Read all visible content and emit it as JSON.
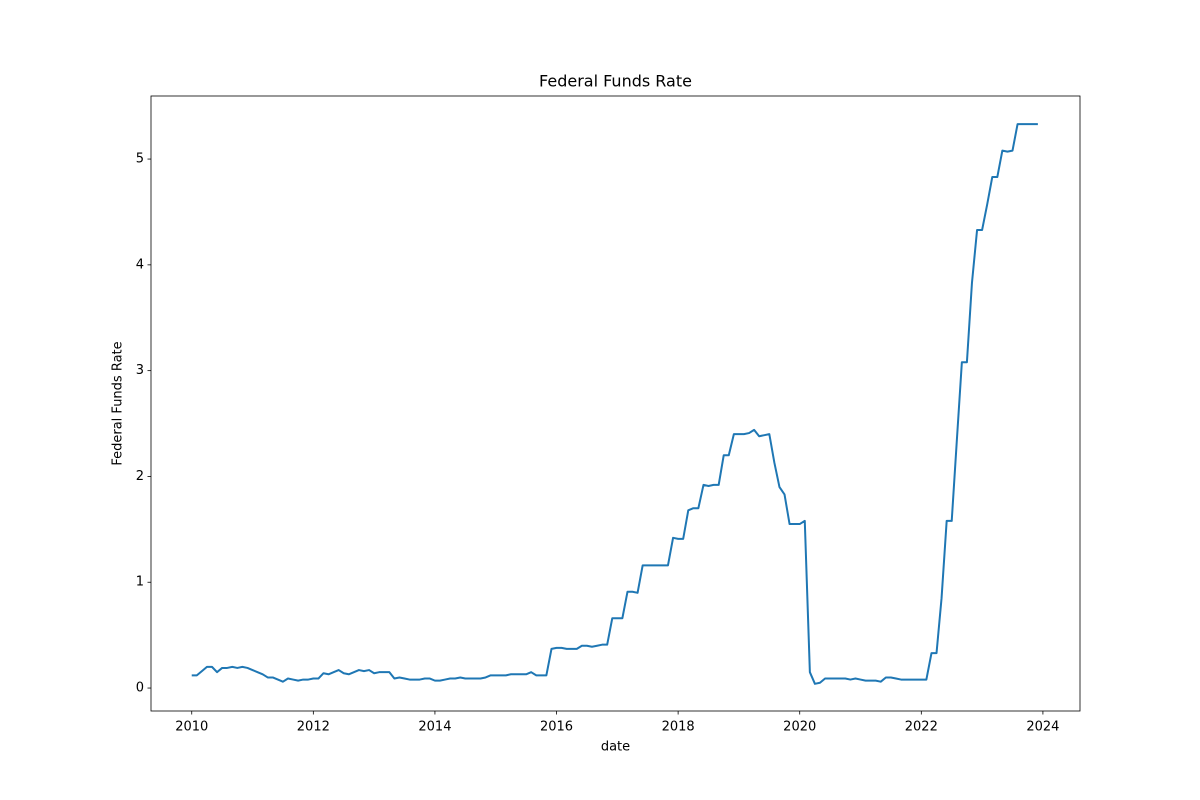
{
  "chart_data": {
    "type": "line",
    "title": "Federal Funds Rate",
    "x_label": "date",
    "y_label": "Federal Funds Rate",
    "color": "#1f77b4",
    "grid": false,
    "xlim": [
      2009.33,
      2024.61
    ],
    "xticks": [
      2010,
      2012,
      2014,
      2016,
      2018,
      2020,
      2022,
      2024
    ],
    "ylim": [
      -0.217,
      5.596
    ],
    "yticks": [
      0,
      1,
      2,
      3,
      4,
      5
    ],
    "x": [
      2010,
      2010.083,
      2010.167,
      2010.25,
      2010.333,
      2010.417,
      2010.5,
      2010.583,
      2010.667,
      2010.75,
      2010.833,
      2010.917,
      2011,
      2011.083,
      2011.167,
      2011.25,
      2011.333,
      2011.417,
      2011.5,
      2011.583,
      2011.667,
      2011.75,
      2011.833,
      2011.917,
      2012,
      2012.083,
      2012.167,
      2012.25,
      2012.333,
      2012.417,
      2012.5,
      2012.583,
      2012.667,
      2012.75,
      2012.833,
      2012.917,
      2013,
      2013.083,
      2013.167,
      2013.25,
      2013.333,
      2013.417,
      2013.5,
      2013.583,
      2013.667,
      2013.75,
      2013.833,
      2013.917,
      2014,
      2014.083,
      2014.167,
      2014.25,
      2014.333,
      2014.417,
      2014.5,
      2014.583,
      2014.667,
      2014.75,
      2014.833,
      2014.917,
      2015,
      2015.083,
      2015.167,
      2015.25,
      2015.333,
      2015.417,
      2015.5,
      2015.583,
      2015.667,
      2015.75,
      2015.833,
      2015.917,
      2016,
      2016.083,
      2016.167,
      2016.25,
      2016.333,
      2016.417,
      2016.5,
      2016.583,
      2016.667,
      2016.75,
      2016.833,
      2016.917,
      2017,
      2017.083,
      2017.167,
      2017.25,
      2017.333,
      2017.417,
      2017.5,
      2017.583,
      2017.667,
      2017.75,
      2017.833,
      2017.917,
      2018,
      2018.083,
      2018.167,
      2018.25,
      2018.333,
      2018.417,
      2018.5,
      2018.583,
      2018.667,
      2018.75,
      2018.833,
      2018.917,
      2019,
      2019.083,
      2019.167,
      2019.25,
      2019.333,
      2019.417,
      2019.5,
      2019.583,
      2019.667,
      2019.75,
      2019.833,
      2019.917,
      2020,
      2020.083,
      2020.167,
      2020.25,
      2020.333,
      2020.417,
      2020.5,
      2020.583,
      2020.667,
      2020.75,
      2020.833,
      2020.917,
      2021,
      2021.083,
      2021.167,
      2021.25,
      2021.333,
      2021.417,
      2021.5,
      2021.583,
      2021.667,
      2021.75,
      2021.833,
      2021.917,
      2022,
      2022.083,
      2022.167,
      2022.25,
      2022.333,
      2022.417,
      2022.5,
      2022.583,
      2022.667,
      2022.75,
      2022.833,
      2022.917,
      2023,
      2023.083,
      2023.167,
      2023.25,
      2023.333,
      2023.417,
      2023.5,
      2023.583,
      2023.667,
      2023.75,
      2023.833,
      2023.917
    ],
    "values": [
      0.12,
      0.12,
      0.16,
      0.2,
      0.2,
      0.15,
      0.19,
      0.19,
      0.2,
      0.19,
      0.2,
      0.19,
      0.17,
      0.15,
      0.13,
      0.1,
      0.1,
      0.08,
      0.06,
      0.09,
      0.08,
      0.07,
      0.08,
      0.08,
      0.09,
      0.09,
      0.14,
      0.13,
      0.15,
      0.17,
      0.14,
      0.13,
      0.15,
      0.17,
      0.16,
      0.17,
      0.14,
      0.15,
      0.15,
      0.15,
      0.09,
      0.1,
      0.09,
      0.08,
      0.08,
      0.08,
      0.09,
      0.09,
      0.07,
      0.07,
      0.08,
      0.09,
      0.09,
      0.1,
      0.09,
      0.09,
      0.09,
      0.09,
      0.1,
      0.12,
      0.12,
      0.12,
      0.12,
      0.13,
      0.13,
      0.13,
      0.13,
      0.15,
      0.12,
      0.12,
      0.12,
      0.37,
      0.38,
      0.38,
      0.37,
      0.37,
      0.37,
      0.4,
      0.4,
      0.39,
      0.4,
      0.41,
      0.41,
      0.66,
      0.66,
      0.66,
      0.91,
      0.91,
      0.9,
      1.16,
      1.16,
      1.16,
      1.16,
      1.16,
      1.16,
      1.42,
      1.41,
      1.41,
      1.68,
      1.7,
      1.7,
      1.92,
      1.91,
      1.92,
      1.92,
      2.2,
      2.2,
      2.4,
      2.4,
      2.4,
      2.41,
      2.44,
      2.38,
      2.39,
      2.4,
      2.13,
      1.9,
      1.83,
      1.55,
      1.55,
      1.55,
      1.58,
      0.15,
      0.04,
      0.05,
      0.09,
      0.09,
      0.09,
      0.09,
      0.09,
      0.08,
      0.09,
      0.08,
      0.07,
      0.07,
      0.07,
      0.06,
      0.1,
      0.1,
      0.09,
      0.08,
      0.08,
      0.08,
      0.08,
      0.08,
      0.08,
      0.33,
      0.33,
      0.85,
      1.58,
      1.58,
      2.33,
      3.08,
      3.08,
      3.83,
      4.33,
      4.33,
      4.57,
      4.83,
      4.83,
      5.08,
      5.07,
      5.08,
      5.33,
      5.33,
      5.33,
      5.33,
      5.33
    ]
  }
}
